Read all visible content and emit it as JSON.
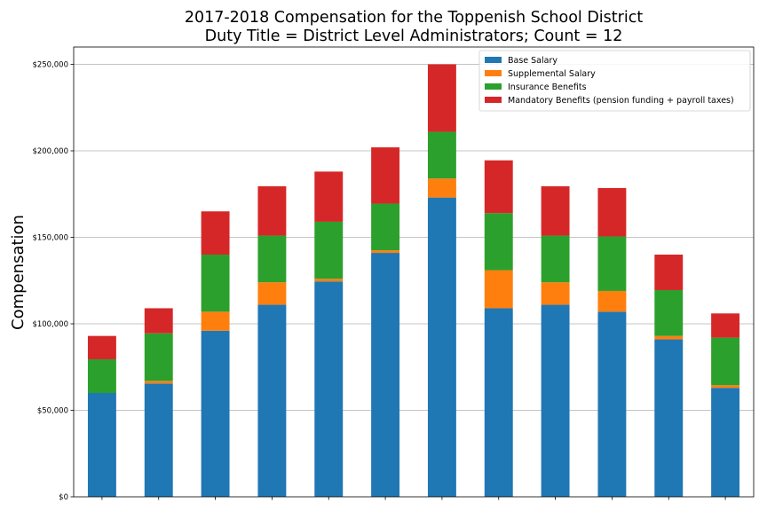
{
  "chart_data": {
    "type": "bar",
    "stacked": true,
    "title": "2017-2018 Compensation for the Toppenish School District",
    "subtitle": "Duty Title = District Level Administrators; Count = 12",
    "xlabel": "",
    "ylabel": "Compensation",
    "ylim": [
      0,
      260000
    ],
    "yticks": [
      0,
      50000,
      100000,
      150000,
      200000,
      250000
    ],
    "ytick_labels": [
      "$0",
      "$50,000",
      "$100,000",
      "$150,000",
      "$200,000",
      "$250,000"
    ],
    "grid": "y",
    "legend_position": "top-right",
    "categories": [
      "",
      "",
      "",
      "",
      "",
      "",
      "",
      "",
      "",
      "",
      "",
      ""
    ],
    "series": [
      {
        "name": "Base Salary",
        "color": "#1f77b4",
        "values": [
          60000,
          65500,
          96000,
          111000,
          124500,
          141000,
          173000,
          109000,
          111000,
          107000,
          91000,
          63000
        ]
      },
      {
        "name": "Supplemental Salary",
        "color": "#ff7f0e",
        "values": [
          0,
          1500,
          11000,
          13000,
          1500,
          1500,
          11000,
          22000,
          13000,
          12000,
          2000,
          1500
        ]
      },
      {
        "name": "Insurance Benefits",
        "color": "#2ca02c",
        "values": [
          19500,
          27500,
          33000,
          27000,
          33000,
          27000,
          27000,
          33000,
          27000,
          31500,
          26500,
          27500
        ]
      },
      {
        "name": "Mandatory Benefits (pension funding + payroll taxes)",
        "color": "#d62728",
        "values": [
          13500,
          14500,
          25000,
          28500,
          29000,
          32500,
          39000,
          30500,
          28500,
          28000,
          20500,
          14000
        ]
      }
    ]
  }
}
